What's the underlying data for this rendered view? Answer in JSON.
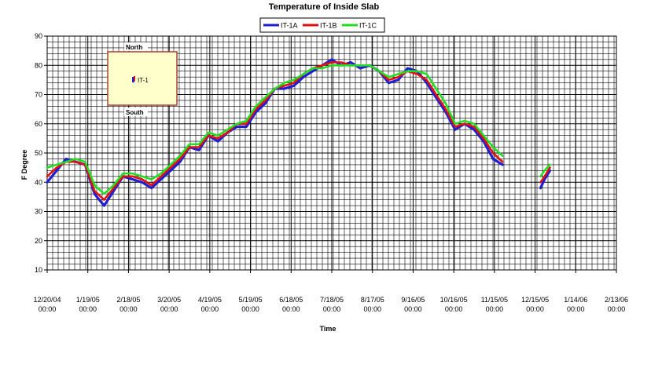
{
  "chart_data": {
    "type": "line",
    "title": "Temperature of Inside Slab",
    "xlabel": "Time",
    "ylabel": "F Degree",
    "ylim": [
      10,
      90
    ],
    "yticks": [
      10,
      20,
      30,
      40,
      50,
      60,
      70,
      80,
      90
    ],
    "xlim": [
      "2004-12-20",
      "2006-02-13"
    ],
    "xtick_labels": [
      {
        "date": "12/20/04",
        "time": "00:00"
      },
      {
        "date": "1/19/05",
        "time": "00:00"
      },
      {
        "date": "2/18/05",
        "time": "00:00"
      },
      {
        "date": "3/20/05",
        "time": "00:00"
      },
      {
        "date": "4/19/05",
        "time": "00:00"
      },
      {
        "date": "5/19/05",
        "time": "00:00"
      },
      {
        "date": "6/18/05",
        "time": "00:00"
      },
      {
        "date": "7/18/05",
        "time": "00:00"
      },
      {
        "date": "8/17/05",
        "time": "00:00"
      },
      {
        "date": "9/16/05",
        "time": "00:00"
      },
      {
        "date": "10/16/05",
        "time": "00:00"
      },
      {
        "date": "11/15/05",
        "time": "00:00"
      },
      {
        "date": "12/15/05",
        "time": "00:00"
      },
      {
        "date": "1/14/06",
        "time": "00:00"
      },
      {
        "date": "2/13/06",
        "time": "00:00"
      }
    ],
    "grid": true,
    "legend_position": "top",
    "series_base_x": [
      "2004-12-20",
      "2004-12-27",
      "2005-01-03",
      "2005-01-10",
      "2005-01-17",
      "2005-01-24",
      "2005-01-31",
      "2005-02-07",
      "2005-02-14",
      "2005-02-21",
      "2005-02-28",
      "2005-03-07",
      "2005-03-14",
      "2005-03-21",
      "2005-03-28",
      "2005-04-04",
      "2005-04-11",
      "2005-04-18",
      "2005-04-25",
      "2005-05-02",
      "2005-05-09",
      "2005-05-16",
      "2005-05-23",
      "2005-05-30",
      "2005-06-06",
      "2005-06-13",
      "2005-06-20",
      "2005-06-27",
      "2005-07-04",
      "2005-07-11",
      "2005-07-18",
      "2005-07-25",
      "2005-08-01",
      "2005-08-08",
      "2005-08-15",
      "2005-08-22",
      "2005-08-29",
      "2005-09-05",
      "2005-09-12",
      "2005-09-19",
      "2005-09-26",
      "2005-10-03",
      "2005-10-10",
      "2005-10-17",
      "2005-10-24",
      "2005-10-31",
      "2005-11-07",
      "2005-11-14",
      "2005-11-21",
      "2005-11-28",
      "2005-12-05"
    ],
    "series": [
      {
        "name": "IT-1A",
        "color": "#1f1fd0",
        "values": [
          40,
          44,
          48,
          47,
          46,
          36,
          32,
          37,
          42,
          41,
          40,
          38,
          41,
          44,
          47,
          52,
          51,
          56,
          54,
          57,
          59,
          59,
          64,
          67,
          72,
          72,
          73,
          76,
          78,
          80,
          82,
          80,
          81,
          79,
          80,
          78,
          74,
          75,
          79,
          78,
          74,
          69,
          64,
          58,
          60,
          58,
          54,
          48,
          46,
          null,
          null
        ],
        "segment2_x": [
          "2005-12-19",
          "2005-12-22",
          "2005-12-26"
        ],
        "segment2_values": [
          38,
          41,
          44
        ]
      },
      {
        "name": "IT-1B",
        "color": "#e01010",
        "values": [
          42,
          45,
          47,
          47,
          46,
          37,
          34,
          38,
          42,
          42,
          41,
          39,
          42,
          45,
          48,
          52,
          52,
          56,
          55,
          57,
          60,
          60,
          65,
          68,
          72,
          73,
          74,
          77,
          79,
          80,
          81,
          81,
          80,
          80,
          80,
          78,
          75,
          76,
          78,
          77,
          75,
          70,
          65,
          59,
          60,
          59,
          55,
          50,
          47,
          null,
          null
        ],
        "segment2_x": [
          "2005-12-19",
          "2005-12-22",
          "2005-12-26"
        ],
        "segment2_values": [
          40,
          42,
          45
        ]
      },
      {
        "name": "IT-1C",
        "color": "#22dd22",
        "values": [
          45,
          46,
          47,
          48,
          47,
          39,
          36,
          39,
          43,
          43,
          42,
          41,
          43,
          46,
          49,
          53,
          53,
          57,
          56,
          58,
          60,
          61,
          66,
          69,
          72,
          74,
          75,
          77,
          79,
          79,
          80,
          80,
          80,
          80,
          80,
          78,
          76,
          77,
          78,
          78,
          77,
          72,
          67,
          60,
          61,
          60,
          56,
          52,
          49,
          null,
          null
        ],
        "segment2_x": [
          "2005-12-19",
          "2005-12-22",
          "2005-12-26"
        ],
        "segment2_values": [
          42,
          44,
          46
        ]
      }
    ]
  },
  "inset": {
    "north_label": "North",
    "south_label": "South",
    "sensor_label": "IT-1"
  }
}
